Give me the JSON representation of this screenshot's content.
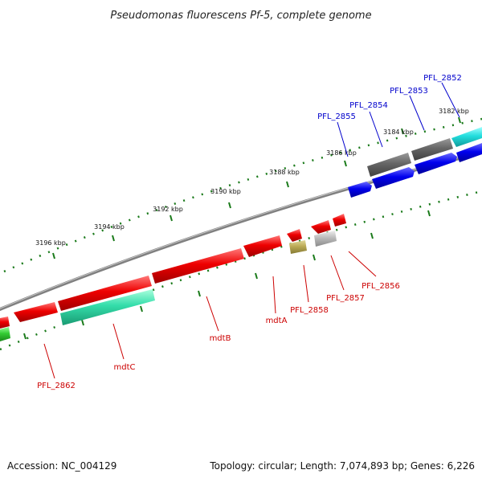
{
  "title": "Pseudomonas fluorescens Pf-5, complete genome",
  "footer": {
    "accession": "Accession: NC_004129",
    "summary": "Topology: circular; Length: 7,074,893 bp; Genes: 6,226"
  },
  "colors": {
    "backbone": "#808080",
    "tick_marks": "#1a7a1a",
    "forward_cds": "#0000ee",
    "reverse_cds": "#ee0000",
    "grey_feature": "#666666",
    "light_grey_feature": "#bbbbbb",
    "cyan_feature": "#22dddd",
    "teal_feature": "#33ddaa",
    "green_feature": "#33cc33",
    "olive_feature": "#bbaa55",
    "forward_label": "#0000cc",
    "reverse_label": "#cc0000"
  },
  "ruler_labels": [
    "3182 kbp",
    "3184 kbp",
    "3186 kbp",
    "3188 kbp",
    "3190 kbp",
    "3192 kbp",
    "3194 kbp",
    "3196 kbp"
  ],
  "forward_gene_labels": [
    "PFL_2852",
    "PFL_2853",
    "PFL_2854",
    "PFL_2855"
  ],
  "reverse_gene_labels": [
    "PFL_2856",
    "PFL_2857",
    "PFL_2858",
    "mdtA",
    "mdtB",
    "mdtC",
    "PFL_2862"
  ]
}
